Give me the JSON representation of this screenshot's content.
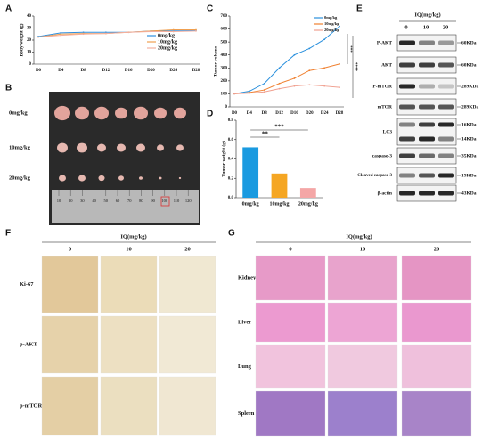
{
  "panel_labels": [
    "A",
    "B",
    "C",
    "D",
    "E",
    "F",
    "G"
  ],
  "chart_data": [
    {
      "type": "line",
      "y_label": "Body weight (g)",
      "categories": [
        "D0",
        "D4",
        "D8",
        "D12",
        "D16",
        "D20",
        "D24",
        "D28"
      ],
      "series": [
        {
          "name": "0mg/kg",
          "color": "#2f8fde",
          "values": [
            23,
            26,
            26.5,
            26.5,
            26.5,
            27.5,
            28,
            28
          ]
        },
        {
          "name": "10mg/kg",
          "color": "#f0a050",
          "values": [
            22.5,
            25,
            25.5,
            25.5,
            26.5,
            27.5,
            28.5,
            28.5
          ]
        },
        {
          "name": "20mg/kg",
          "color": "#f4b0a0",
          "values": [
            22.5,
            24,
            25,
            25.5,
            26.5,
            27,
            27,
            27.5
          ]
        }
      ],
      "ylim": [
        0,
        40
      ],
      "yticks": [
        0,
        10,
        20,
        30,
        40
      ]
    },
    {
      "type": "line",
      "y_label": "Tumor volume",
      "categories": [
        "D0",
        "D4",
        "D8",
        "D12",
        "D16",
        "D20",
        "D24",
        "D28"
      ],
      "series": [
        {
          "name": "0mg/kg",
          "color": "#2a90dd",
          "values": [
            100,
            120,
            180,
            300,
            400,
            450,
            520,
            620
          ]
        },
        {
          "name": "10mg/kg",
          "color": "#f08030",
          "values": [
            100,
            110,
            130,
            180,
            220,
            280,
            300,
            330
          ]
        },
        {
          "name": "20mg/kg",
          "color": "#f0a090",
          "values": [
            100,
            105,
            115,
            140,
            160,
            170,
            160,
            150
          ]
        }
      ],
      "ylim": [
        0,
        700
      ],
      "yticks": [
        0,
        100,
        200,
        300,
        400,
        500,
        600,
        700
      ],
      "annotations": [
        "***",
        "****"
      ]
    },
    {
      "type": "bar",
      "y_label": "Tumor weight (g)",
      "categories": [
        "0mg/kg",
        "10mg/kg",
        "20mg/kg"
      ],
      "values": [
        0.52,
        0.25,
        0.1
      ],
      "colors": [
        "#1a9ae0",
        "#f5a623",
        "#f4a6a6"
      ],
      "ylim": [
        0,
        0.8
      ],
      "yticks": [
        {
          "value": 0,
          "label": "0.0"
        },
        0.2,
        0.4,
        0.6,
        0.8
      ],
      "annotations": [
        "**",
        "***"
      ]
    }
  ],
  "tumor_photo": {
    "rows": [
      "0mg/kg",
      "10mg/kg",
      "20mg/kg"
    ],
    "ruler_labels": [
      "10",
      "20",
      "30",
      "40",
      "50",
      "60",
      "70",
      "80",
      "90",
      "100",
      "110",
      "120"
    ]
  },
  "western_blot": {
    "header": "IQ(mg/kg)",
    "doses": [
      "0",
      "10",
      "20"
    ],
    "rows": [
      {
        "label": "P-AKT",
        "sizes": [
          "60KDa"
        ]
      },
      {
        "label": "AKT",
        "sizes": [
          "60KDa"
        ]
      },
      {
        "label": "P-mTOR",
        "sizes": [
          "289KDa"
        ]
      },
      {
        "label": "mTOR",
        "sizes": [
          "289KDa"
        ]
      },
      {
        "label": "LC3",
        "sizes": [
          "16KDa",
          "14KDa"
        ]
      },
      {
        "label": "caspase-3",
        "sizes": [
          "35KDa"
        ]
      },
      {
        "label": "Cleaved caspase-3",
        "sizes": [
          "19KDa"
        ]
      },
      {
        "label": "β-actin",
        "sizes": [
          "43KDa"
        ]
      }
    ]
  },
  "ihc": {
    "header": "IQ(mg/kg)",
    "doses": [
      "0",
      "10",
      "20"
    ],
    "rows": [
      "Ki-67",
      "p-AKT",
      "p-mTOR"
    ]
  },
  "he": {
    "header": "IQ(mg/kg)",
    "doses": [
      "0",
      "10",
      "20"
    ],
    "rows": [
      "Kidney",
      "Liver",
      "Lung",
      "Spleen"
    ]
  }
}
